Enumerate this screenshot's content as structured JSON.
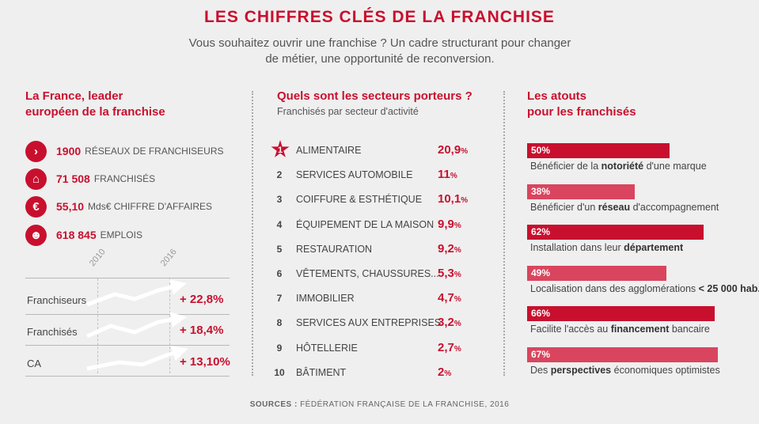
{
  "title": "LES CHIFFRES CLÉS DE LA FRANCHISE",
  "subtitle_line1": "Vous souhaitez ouvrir une franchise ? Un cadre structurant pour changer",
  "subtitle_line2": "de métier, une opportunité de reconversion.",
  "left": {
    "heading_line1": "La France, leader",
    "heading_line2": "européen de la franchise",
    "stats": [
      {
        "icon": "chevron-right-icon",
        "glyph": "›",
        "value": "1900",
        "label": "RÉSEAUX DE FRANCHISEURS"
      },
      {
        "icon": "shop-icon",
        "glyph": "⌂",
        "value": "71 508",
        "label": "FRANCHISÉS"
      },
      {
        "icon": "euro-icon",
        "glyph": "€",
        "value": "55,10",
        "label": "Mds€ CHIFFRE D'AFFAIRES"
      },
      {
        "icon": "people-icon",
        "glyph": "☻",
        "value": "618 845",
        "label": "EMPLOIS"
      }
    ],
    "years": [
      "2010",
      "2016"
    ],
    "trends": [
      {
        "label": "Franchiseurs",
        "value": "+ 22,8%"
      },
      {
        "label": "Franchisés",
        "value": "+ 18,4%"
      },
      {
        "label": "CA",
        "value": "+ 13,10%"
      }
    ]
  },
  "middle": {
    "heading": "Quels sont les secteurs porteurs ?",
    "subheading": "Franchisés par secteur d'activité"
  },
  "right": {
    "heading_line1": "Les atouts",
    "heading_line2": "pour les franchisés"
  },
  "sources_label": "SOURCES :",
  "sources": "FÉDÉRATION FRANÇAISE DE LA FRANCHISE, 2016",
  "colors": {
    "accent": "#c8102e",
    "accent_light": "#d9455e",
    "background": "#efefef"
  },
  "chart_data": [
    {
      "type": "table",
      "title": "Quels sont les secteurs porteurs ?",
      "subtitle": "Franchisés par secteur d'activité",
      "rows": [
        {
          "rank": "1",
          "sector": "ALIMENTAIRE",
          "value": 20.9,
          "display": "20,9"
        },
        {
          "rank": "2",
          "sector": "SERVICES AUTOMOBILE",
          "value": 11,
          "display": "11"
        },
        {
          "rank": "3",
          "sector": "COIFFURE & ESTHÉTIQUE",
          "value": 10.1,
          "display": "10,1"
        },
        {
          "rank": "4",
          "sector": "ÉQUIPEMENT DE LA MAISON",
          "value": 9.9,
          "display": "9,9"
        },
        {
          "rank": "5",
          "sector": "RESTAURATION",
          "value": 9.2,
          "display": "9,2"
        },
        {
          "rank": "6",
          "sector": "VÊTEMENTS, CHAUSSURES...",
          "value": 5.3,
          "display": "5,3"
        },
        {
          "rank": "7",
          "sector": "IMMOBILIER",
          "value": 4.7,
          "display": "4,7"
        },
        {
          "rank": "8",
          "sector": "SERVICES AUX ENTREPRISES",
          "value": 3.2,
          "display": "3,2"
        },
        {
          "rank": "9",
          "sector": "HÔTELLERIE",
          "value": 2.7,
          "display": "2,7"
        },
        {
          "rank": "10",
          "sector": "BÂTIMENT",
          "value": 2,
          "display": "2"
        }
      ],
      "unit": "%"
    },
    {
      "type": "bar",
      "title": "Les atouts pour les franchisés",
      "xlim": [
        0,
        100
      ],
      "bars": [
        {
          "value": 50,
          "label": "50%",
          "pre": "Bénéficier de la ",
          "bold": "notoriété",
          "post": " d'une marque",
          "color": "#c8102e"
        },
        {
          "value": 38,
          "label": "38%",
          "pre": "Bénéficier d'un ",
          "bold": "réseau",
          "post": " d'accompagnement",
          "color": "#d9455e"
        },
        {
          "value": 62,
          "label": "62%",
          "pre": "Installation dans leur ",
          "bold": "département",
          "post": "",
          "color": "#c8102e"
        },
        {
          "value": 49,
          "label": "49%",
          "pre": "Localisation dans des agglomérations ",
          "bold": "< 25 000 hab.",
          "post": "",
          "color": "#d9455e"
        },
        {
          "value": 66,
          "label": "66%",
          "pre": "Facilite l'accès au ",
          "bold": "financement",
          "post": " bancaire",
          "color": "#c8102e"
        },
        {
          "value": 67,
          "label": "67%",
          "pre": "Des ",
          "bold": "perspectives",
          "post": " économiques optimistes",
          "color": "#d9455e"
        }
      ]
    }
  ]
}
